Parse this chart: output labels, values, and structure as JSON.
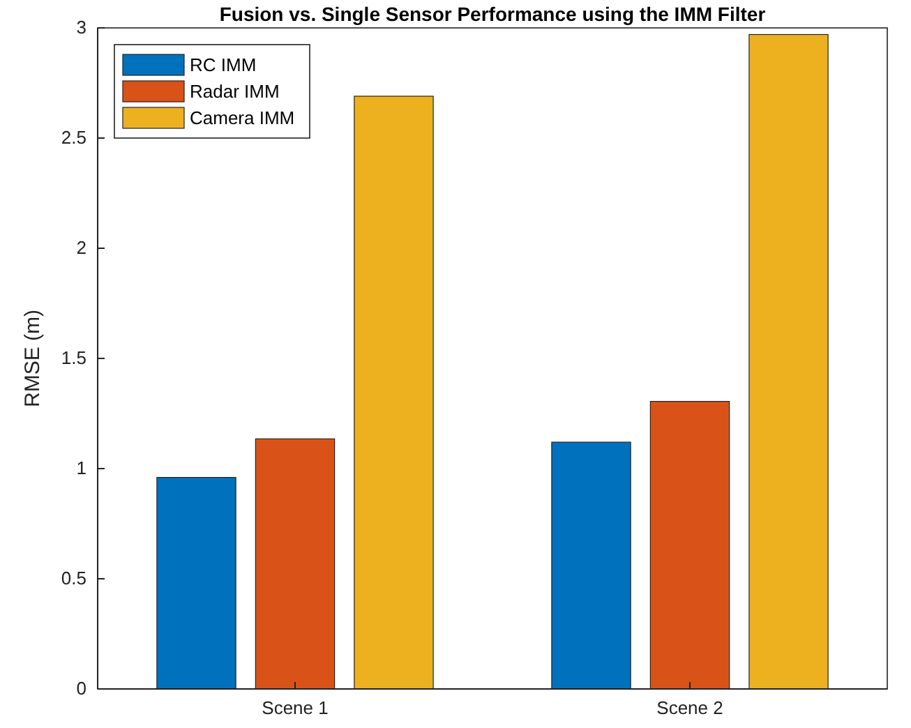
{
  "chart_data": {
    "type": "bar",
    "title": "Fusion vs. Single Sensor Performance using the IMM Filter",
    "ylabel": "RMSE (m)",
    "categories": [
      "Scene 1",
      "Scene 2"
    ],
    "series": [
      {
        "name": "RC IMM",
        "color": "#0072bd",
        "values": [
          0.96,
          1.12
        ]
      },
      {
        "name": "Radar IMM",
        "color": "#d95319",
        "values": [
          1.135,
          1.305
        ]
      },
      {
        "name": "Camera IMM",
        "color": "#edb120",
        "values": [
          2.69,
          2.97
        ]
      }
    ],
    "ylim": [
      0,
      3
    ],
    "yticks": [
      0,
      0.5,
      1,
      1.5,
      2,
      2.5,
      3
    ],
    "grid": false,
    "legend": "top left"
  }
}
